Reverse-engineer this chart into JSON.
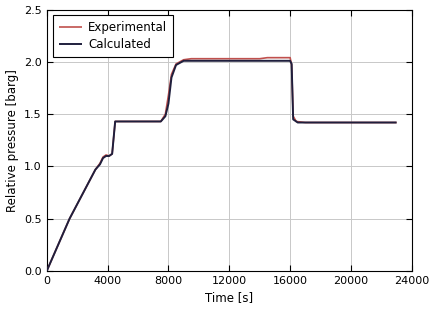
{
  "title": "",
  "xlabel": "Time [s]",
  "ylabel": "Relative pressure [barg]",
  "xlim": [
    0,
    24000
  ],
  "ylim": [
    0.0,
    2.5
  ],
  "xticks": [
    0,
    4000,
    8000,
    12000,
    16000,
    20000,
    24000
  ],
  "yticks": [
    0.0,
    0.5,
    1.0,
    1.5,
    2.0,
    2.5
  ],
  "legend_labels": [
    "Experimental",
    "Calculated"
  ],
  "exp_color": "#c0504d",
  "calc_color": "#1f1f3d",
  "exp_linewidth": 1.2,
  "calc_linewidth": 1.4,
  "exp_x": [
    0,
    1500,
    3200,
    3500,
    3700,
    3900,
    4100,
    4300,
    4500,
    5000,
    6000,
    7000,
    7500,
    7800,
    8000,
    8200,
    8500,
    9000,
    9500,
    10000,
    10500,
    11000,
    12000,
    13000,
    14000,
    14500,
    15000,
    15300,
    15500,
    15700,
    15800,
    15900,
    16000,
    16100,
    16200,
    16400,
    17000,
    18000,
    19000,
    20000,
    21000,
    22000,
    23000
  ],
  "exp_y": [
    0.0,
    0.5,
    0.97,
    1.03,
    1.09,
    1.11,
    1.1,
    1.12,
    1.43,
    1.43,
    1.43,
    1.43,
    1.43,
    1.5,
    1.68,
    1.88,
    1.98,
    2.02,
    2.03,
    2.03,
    2.03,
    2.03,
    2.03,
    2.03,
    2.03,
    2.04,
    2.04,
    2.04,
    2.04,
    2.04,
    2.04,
    2.04,
    2.04,
    1.97,
    1.48,
    1.43,
    1.42,
    1.42,
    1.42,
    1.42,
    1.42,
    1.42,
    1.42
  ],
  "calc_x": [
    0,
    1500,
    3200,
    3500,
    3700,
    3900,
    4100,
    4300,
    4500,
    5000,
    6000,
    7000,
    7500,
    7800,
    8000,
    8200,
    8500,
    9000,
    9500,
    10000,
    11000,
    12000,
    13000,
    14000,
    15000,
    15300,
    15500,
    15700,
    15900,
    16000,
    16100,
    16200,
    16500,
    17000,
    18000,
    19000,
    20000,
    21000,
    22000,
    23000
  ],
  "calc_y": [
    0.0,
    0.5,
    0.97,
    1.02,
    1.08,
    1.1,
    1.1,
    1.12,
    1.43,
    1.43,
    1.43,
    1.43,
    1.43,
    1.48,
    1.6,
    1.85,
    1.97,
    2.01,
    2.01,
    2.01,
    2.01,
    2.01,
    2.01,
    2.01,
    2.01,
    2.01,
    2.01,
    2.01,
    2.01,
    2.01,
    1.98,
    1.45,
    1.42,
    1.42,
    1.42,
    1.42,
    1.42,
    1.42,
    1.42,
    1.42
  ],
  "grid_color": "#c8c8c8",
  "background_color": "#ffffff",
  "plot_bg_color": "#ffffff",
  "font_family": "DejaVu Sans",
  "font_size": 8.5,
  "tick_label_size": 8,
  "legend_fontsize": 8.5,
  "spine_color": "#000000"
}
